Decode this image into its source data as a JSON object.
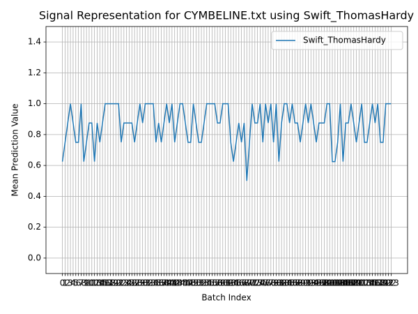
{
  "chart_data": {
    "type": "line",
    "title": "Signal Representation for CYMBELINE.txt using Swift_ThomasHardy",
    "x_label": "Batch Index",
    "y_label": "Mean Prediction Value",
    "x": [
      0,
      1,
      2,
      3,
      4,
      5,
      6,
      7,
      8,
      9,
      10,
      11,
      12,
      13,
      14,
      15,
      16,
      17,
      18,
      19,
      20,
      21,
      22,
      23,
      24,
      25,
      26,
      27,
      28,
      29,
      30,
      31,
      32,
      33,
      34,
      35,
      36,
      37,
      38,
      39,
      40,
      41,
      42,
      43,
      44,
      45,
      46,
      47,
      48,
      49,
      50,
      51,
      52,
      53,
      54,
      55,
      56,
      57,
      58,
      59,
      60,
      61,
      62,
      63,
      64,
      65,
      66,
      67,
      68,
      69,
      70,
      71,
      72,
      73,
      74,
      75,
      76,
      77,
      78,
      79,
      80,
      81,
      82,
      83,
      84,
      85,
      86,
      87,
      88,
      89,
      90,
      91,
      92,
      93,
      94,
      95,
      96,
      97,
      98,
      99,
      100,
      101,
      102,
      103,
      104,
      105,
      106,
      107,
      108,
      109,
      110,
      111,
      112,
      113,
      114,
      115,
      116,
      117,
      118,
      119,
      120,
      121,
      122,
      123
    ],
    "series": [
      {
        "name": "Swift_ThomasHardy",
        "color": "#1f77b4",
        "values": [
          0.625,
          0.75,
          0.875,
          1,
          0.875,
          0.75,
          0.75,
          1,
          0.625,
          0.75,
          0.875,
          0.875,
          0.625,
          0.875,
          0.75,
          0.875,
          1,
          1,
          1,
          1,
          1,
          1,
          0.75,
          0.875,
          0.875,
          0.875,
          0.875,
          0.75,
          0.875,
          1,
          0.875,
          1,
          1,
          1,
          1,
          0.75,
          0.875,
          0.75,
          0.875,
          1,
          0.875,
          1,
          0.75,
          0.875,
          1,
          1,
          0.875,
          0.75,
          0.75,
          1,
          0.875,
          0.75,
          0.75,
          0.875,
          1,
          1,
          1,
          1,
          0.875,
          0.875,
          1,
          1,
          1,
          0.75,
          0.625,
          0.75,
          0.875,
          0.75,
          0.875,
          0.5,
          0.75,
          1,
          0.875,
          0.875,
          1,
          0.75,
          1,
          0.875,
          1,
          0.75,
          1,
          0.625,
          0.875,
          1,
          1,
          0.875,
          1,
          0.875,
          0.875,
          0.75,
          0.875,
          1,
          0.875,
          1,
          0.875,
          0.75,
          0.875,
          0.875,
          0.875,
          1,
          1,
          0.625,
          0.625,
          0.75,
          1,
          0.625,
          0.875,
          0.875,
          1,
          0.875,
          0.75,
          0.875,
          1,
          0.75,
          0.75,
          0.875,
          1,
          0.875,
          1,
          0.75,
          0.75,
          1,
          1,
          1
        ]
      }
    ],
    "xlim": [
      -6.15,
      129.15
    ],
    "ylim": [
      -0.1,
      1.5
    ],
    "xticks": [
      0,
      1,
      2,
      3,
      4,
      5,
      6,
      7,
      8,
      9,
      10,
      11,
      12,
      13,
      14,
      15,
      16,
      17,
      18,
      19,
      20,
      21,
      22,
      23,
      24,
      25,
      26,
      27,
      28,
      29,
      30,
      31,
      32,
      33,
      34,
      35,
      36,
      37,
      38,
      39,
      40,
      41,
      42,
      43,
      44,
      45,
      46,
      47,
      48,
      49,
      50,
      51,
      52,
      53,
      54,
      55,
      56,
      57,
      58,
      59,
      60,
      61,
      62,
      63,
      64,
      65,
      66,
      67,
      68,
      69,
      70,
      71,
      72,
      73,
      74,
      75,
      76,
      77,
      78,
      79,
      80,
      81,
      82,
      83,
      84,
      85,
      86,
      87,
      88,
      89,
      90,
      91,
      92,
      93,
      94,
      95,
      96,
      97,
      98,
      99,
      100,
      101,
      102,
      103,
      104,
      105,
      106,
      107,
      108,
      109,
      110,
      111,
      112,
      113,
      114,
      115,
      116,
      117,
      118,
      119,
      120,
      121,
      122,
      123
    ],
    "yticks": [
      {
        "value": 0,
        "label": "0.0"
      },
      0.2,
      0.4,
      0.6,
      0.8,
      {
        "value": 1,
        "label": "1.0"
      },
      1.2,
      1.4
    ],
    "grid": true,
    "legend": "upper right"
  }
}
